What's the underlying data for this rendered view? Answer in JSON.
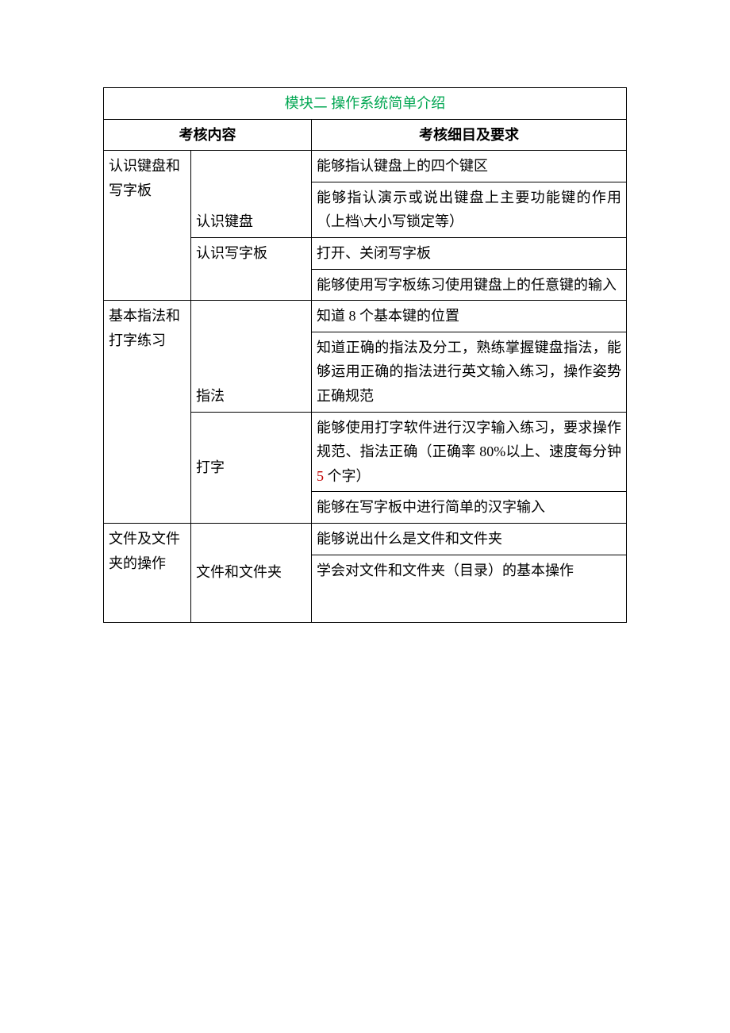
{
  "module_title": "模块二 操作系统简单介绍",
  "headers": {
    "content": "考核内容",
    "detail": "考核细目及要求"
  },
  "sections": [
    {
      "topic": "认识键盘和写字板",
      "groups": [
        {
          "subtopic": "认识键盘",
          "items": [
            "能够指认键盘上的四个键区",
            "能够指认演示或说出键盘上主要功能键的作用（上档\\大小写锁定等）"
          ]
        },
        {
          "subtopic": "认识写字板",
          "items": [
            "打开、关闭写字板",
            "能够使用写字板练习使用键盘上的任意键的输入"
          ]
        }
      ]
    },
    {
      "topic": "基本指法和打字练习",
      "groups": [
        {
          "subtopic": "指法",
          "items": [
            "知道 8 个基本键的位置",
            "知道正确的指法及分工，熟练掌握键盘指法，能够运用正确的指法进行英文输入练习，操作姿势正确规范"
          ]
        },
        {
          "subtopic": "打字",
          "items_html": [
            {
              "text_before": "能够使用打字软件进行汉字输入练习，要求操作规范、指法正确（正确率 80%以上、速度每分钟 ",
              "red": "5",
              "text_after": " 个字）"
            },
            {
              "plain": "能够在写字板中进行简单的汉字输入"
            }
          ]
        }
      ]
    },
    {
      "topic": "文件及文件夹的操作",
      "groups": [
        {
          "subtopic": "文件和文件夹",
          "items": [
            "能够说出什么是文件和文件夹",
            "学会对文件和文件夹（目录）的基本操作"
          ]
        }
      ]
    }
  ],
  "colors": {
    "title": "#00a651",
    "border": "#000000",
    "text": "#000000",
    "red": "#c00000",
    "background": "#ffffff"
  },
  "fontsize": 18
}
